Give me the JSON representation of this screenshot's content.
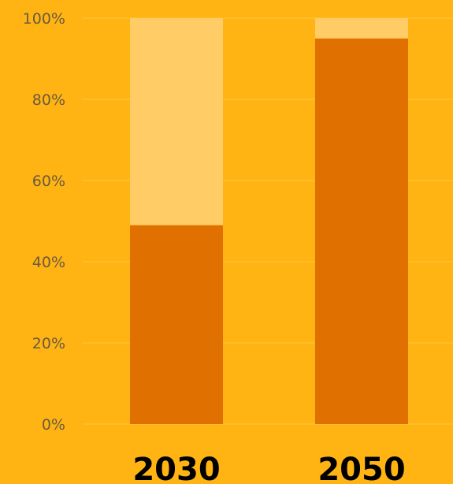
{
  "chart_data": {
    "type": "bar",
    "stacked": true,
    "categories": [
      "2030",
      "2050"
    ],
    "series": [
      {
        "values": [
          49,
          95
        ],
        "color": "#E07000"
      },
      {
        "values": [
          51,
          5
        ],
        "color": "#FFCC66"
      }
    ],
    "ylim": [
      0,
      100
    ],
    "yticks": [
      0,
      20,
      40,
      60,
      80,
      100
    ],
    "ytick_labels": [
      "0%",
      "20%",
      "40%",
      "60%",
      "80%",
      "100%"
    ],
    "grid": true,
    "legend": "none",
    "background_color": "#FFB414"
  }
}
